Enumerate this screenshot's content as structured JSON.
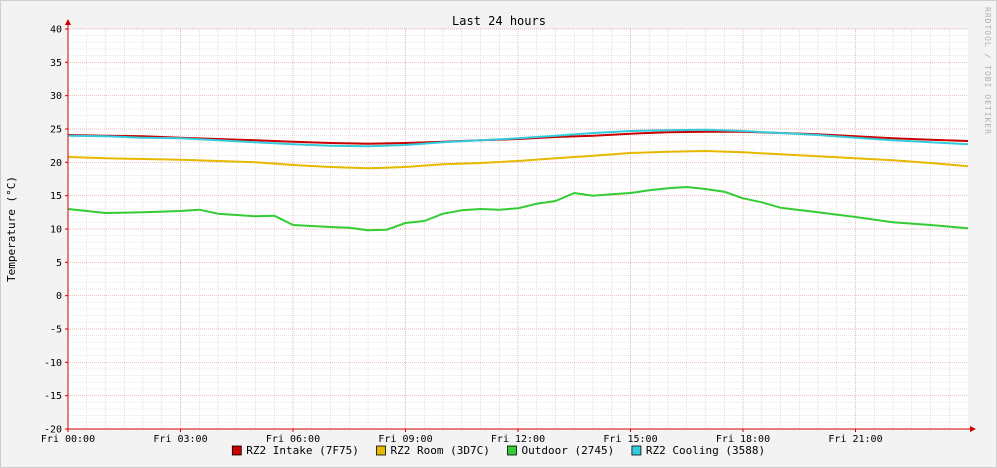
{
  "chart_data": {
    "type": "line",
    "title": "Last 24 hours",
    "ylabel": "Temperature (°C)",
    "xlabel": "",
    "watermark": "RRDTOOL / TOBI OETIKER",
    "ylim": [
      -20,
      40
    ],
    "yticks": [
      40,
      35,
      30,
      25,
      20,
      15,
      10,
      5,
      0,
      -5,
      -10,
      -15,
      -20
    ],
    "xlim": [
      0,
      24
    ],
    "xticks": [
      {
        "h": 0,
        "label": "Fri 00:00"
      },
      {
        "h": 3,
        "label": "Fri 03:00"
      },
      {
        "h": 6,
        "label": "Fri 06:00"
      },
      {
        "h": 9,
        "label": "Fri 09:00"
      },
      {
        "h": 12,
        "label": "Fri 12:00"
      },
      {
        "h": 15,
        "label": "Fri 15:00"
      },
      {
        "h": 18,
        "label": "Fri 18:00"
      },
      {
        "h": 21,
        "label": "Fri 21:00"
      }
    ],
    "grid": true,
    "legend_position": "bottom",
    "series": [
      {
        "name": "RZ2 Intake (7F75)",
        "color": "#cc0000",
        "x": [
          0,
          1,
          2,
          3,
          4,
          5,
          6,
          7,
          8,
          9,
          10,
          11,
          12,
          13,
          14,
          15,
          16,
          17,
          18,
          19,
          20,
          21,
          22,
          23,
          24
        ],
        "y": [
          24.1,
          24.0,
          23.9,
          23.7,
          23.5,
          23.3,
          23.1,
          22.9,
          22.8,
          22.9,
          23.1,
          23.3,
          23.5,
          23.8,
          24.0,
          24.3,
          24.5,
          24.6,
          24.6,
          24.4,
          24.2,
          23.9,
          23.6,
          23.4,
          23.2
        ]
      },
      {
        "name": "RZ2 Room (3D7C)",
        "color": "#e6b800",
        "x": [
          0,
          1,
          2,
          3,
          4,
          5,
          6,
          7,
          8,
          9,
          10,
          11,
          12,
          13,
          14,
          15,
          16,
          17,
          18,
          19,
          20,
          21,
          22,
          23,
          24
        ],
        "y": [
          20.8,
          20.6,
          20.5,
          20.4,
          20.2,
          20.0,
          19.6,
          19.3,
          19.1,
          19.3,
          19.7,
          19.9,
          20.2,
          20.6,
          21.0,
          21.4,
          21.6,
          21.7,
          21.5,
          21.2,
          20.9,
          20.6,
          20.3,
          19.9,
          19.4
        ]
      },
      {
        "name": "Outdoor (2745)",
        "color": "#33cc33",
        "x": [
          0,
          1,
          2,
          3,
          3.5,
          4,
          5,
          5.5,
          6,
          7,
          7.5,
          8,
          8.5,
          9,
          9.5,
          10,
          10.5,
          11,
          11.5,
          12,
          12.5,
          13,
          13.5,
          14,
          14.5,
          15,
          15.5,
          16,
          16.5,
          17,
          17.5,
          18,
          18.5,
          19,
          20,
          21,
          22,
          23,
          24
        ],
        "y": [
          13.0,
          12.4,
          12.5,
          12.7,
          12.9,
          12.3,
          11.9,
          12.0,
          10.6,
          10.3,
          10.2,
          9.8,
          9.9,
          10.9,
          11.2,
          12.3,
          12.8,
          13.0,
          12.9,
          13.1,
          13.8,
          14.2,
          15.4,
          15.0,
          15.2,
          15.4,
          15.8,
          16.1,
          16.3,
          16.0,
          15.6,
          14.6,
          14.0,
          13.2,
          12.5,
          11.8,
          11.0,
          10.6,
          10.1
        ]
      },
      {
        "name": "RZ2 Cooling (3588)",
        "color": "#33ccdd",
        "x": [
          0,
          1,
          2,
          3,
          4,
          5,
          6,
          7,
          8,
          9,
          10,
          11,
          12,
          13,
          14,
          15,
          16,
          17,
          18,
          19,
          20,
          21,
          22,
          23,
          24
        ],
        "y": [
          24.0,
          23.9,
          23.7,
          23.6,
          23.3,
          23.0,
          22.7,
          22.5,
          22.4,
          22.6,
          23.0,
          23.3,
          23.6,
          24.0,
          24.4,
          24.7,
          24.8,
          24.9,
          24.7,
          24.4,
          24.1,
          23.7,
          23.3,
          23.0,
          22.7
        ]
      }
    ]
  }
}
